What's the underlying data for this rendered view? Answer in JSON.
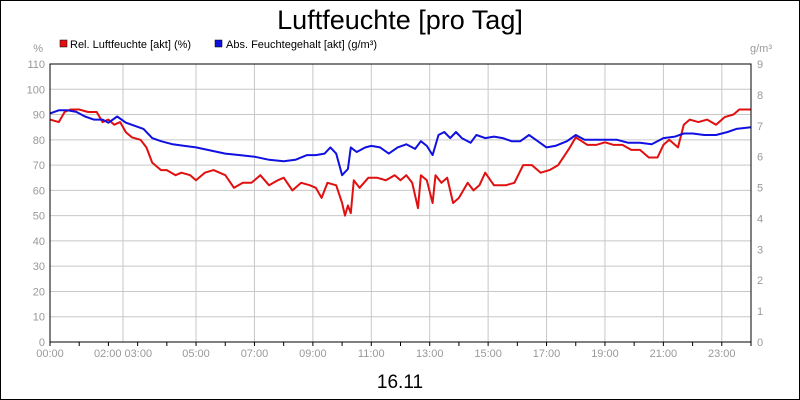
{
  "chart_data": {
    "type": "line",
    "title": "Luftfeuchte [pro Tag]",
    "date_label": "16.11",
    "y_left_unit": "%",
    "y_right_unit": "g/m³",
    "ylim_left": [
      0,
      110
    ],
    "ylim_right": [
      0,
      9
    ],
    "xlim": [
      0,
      24
    ],
    "y_left_ticks": [
      "0",
      "10",
      "20",
      "30",
      "40",
      "50",
      "60",
      "70",
      "80",
      "90",
      "100",
      "110"
    ],
    "y_right_ticks": [
      "0",
      "1",
      "2",
      "3",
      "4",
      "5",
      "6",
      "7",
      "8",
      "9"
    ],
    "x_ticks": [
      {
        "h": 0,
        "label": "00:00"
      },
      {
        "h": 2.5,
        "label": "02:00 03:00"
      },
      {
        "h": 5,
        "label": "05:00"
      },
      {
        "h": 7,
        "label": "07:00"
      },
      {
        "h": 9,
        "label": "09:00"
      },
      {
        "h": 11,
        "label": "11:00"
      },
      {
        "h": 13,
        "label": "13:00"
      },
      {
        "h": 15,
        "label": "15:00"
      },
      {
        "h": 17,
        "label": "17:00"
      },
      {
        "h": 19,
        "label": "19:00"
      },
      {
        "h": 21,
        "label": "21:00"
      },
      {
        "h": 23,
        "label": "23:00"
      }
    ],
    "grid": true,
    "legend_position": "top-left",
    "series": [
      {
        "name": "Rel. Luftfeuchte [akt] (%)",
        "color": "#e01010",
        "axis": "left",
        "points": [
          [
            0,
            88
          ],
          [
            0.3,
            87
          ],
          [
            0.5,
            91
          ],
          [
            0.7,
            92
          ],
          [
            1.0,
            92
          ],
          [
            1.3,
            91
          ],
          [
            1.6,
            91
          ],
          [
            1.8,
            87
          ],
          [
            2.0,
            88
          ],
          [
            2.2,
            86
          ],
          [
            2.4,
            87
          ],
          [
            2.6,
            83
          ],
          [
            2.8,
            81
          ],
          [
            3.1,
            80
          ],
          [
            3.3,
            77
          ],
          [
            3.5,
            71
          ],
          [
            3.8,
            68
          ],
          [
            4.0,
            68
          ],
          [
            4.3,
            66
          ],
          [
            4.5,
            67
          ],
          [
            4.8,
            66
          ],
          [
            5.0,
            64
          ],
          [
            5.3,
            67
          ],
          [
            5.6,
            68
          ],
          [
            6.0,
            66
          ],
          [
            6.3,
            61
          ],
          [
            6.6,
            63
          ],
          [
            6.9,
            63
          ],
          [
            7.2,
            66
          ],
          [
            7.5,
            62
          ],
          [
            7.8,
            64
          ],
          [
            8.0,
            65
          ],
          [
            8.3,
            60
          ],
          [
            8.6,
            63
          ],
          [
            8.9,
            62
          ],
          [
            9.1,
            61
          ],
          [
            9.3,
            57
          ],
          [
            9.5,
            63
          ],
          [
            9.8,
            62
          ],
          [
            10.0,
            55
          ],
          [
            10.1,
            50
          ],
          [
            10.2,
            54
          ],
          [
            10.3,
            51
          ],
          [
            10.4,
            64
          ],
          [
            10.6,
            61
          ],
          [
            10.9,
            65
          ],
          [
            11.2,
            65
          ],
          [
            11.5,
            64
          ],
          [
            11.8,
            66
          ],
          [
            12.0,
            64
          ],
          [
            12.2,
            66
          ],
          [
            12.4,
            63
          ],
          [
            12.6,
            53
          ],
          [
            12.7,
            66
          ],
          [
            12.9,
            64
          ],
          [
            13.1,
            55
          ],
          [
            13.2,
            66
          ],
          [
            13.4,
            63
          ],
          [
            13.6,
            65
          ],
          [
            13.8,
            55
          ],
          [
            14.0,
            57
          ],
          [
            14.3,
            63
          ],
          [
            14.5,
            60
          ],
          [
            14.7,
            62
          ],
          [
            14.9,
            67
          ],
          [
            15.2,
            62
          ],
          [
            15.6,
            62
          ],
          [
            15.9,
            63
          ],
          [
            16.2,
            70
          ],
          [
            16.5,
            70
          ],
          [
            16.8,
            67
          ],
          [
            17.1,
            68
          ],
          [
            17.4,
            70
          ],
          [
            17.8,
            77
          ],
          [
            18.0,
            81
          ],
          [
            18.4,
            78
          ],
          [
            18.7,
            78
          ],
          [
            19.0,
            79
          ],
          [
            19.3,
            78
          ],
          [
            19.6,
            78
          ],
          [
            19.9,
            76
          ],
          [
            20.2,
            76
          ],
          [
            20.5,
            73
          ],
          [
            20.8,
            73
          ],
          [
            21.0,
            78
          ],
          [
            21.2,
            80
          ],
          [
            21.5,
            77
          ],
          [
            21.7,
            86
          ],
          [
            21.9,
            88
          ],
          [
            22.2,
            87
          ],
          [
            22.5,
            88
          ],
          [
            22.8,
            86
          ],
          [
            23.1,
            89
          ],
          [
            23.4,
            90
          ],
          [
            23.6,
            92
          ],
          [
            24.0,
            92
          ]
        ]
      },
      {
        "name": "Abs. Feuchtegehalt [akt] (g/m³)",
        "color": "#1010e0",
        "axis": "right",
        "points": [
          [
            0,
            7.4
          ],
          [
            0.3,
            7.5
          ],
          [
            0.6,
            7.5
          ],
          [
            0.9,
            7.45
          ],
          [
            1.2,
            7.3
          ],
          [
            1.5,
            7.2
          ],
          [
            1.8,
            7.2
          ],
          [
            2.0,
            7.1
          ],
          [
            2.3,
            7.3
          ],
          [
            2.6,
            7.1
          ],
          [
            2.9,
            7.0
          ],
          [
            3.2,
            6.9
          ],
          [
            3.5,
            6.6
          ],
          [
            3.8,
            6.5
          ],
          [
            4.2,
            6.4
          ],
          [
            4.6,
            6.35
          ],
          [
            5.0,
            6.3
          ],
          [
            5.5,
            6.2
          ],
          [
            6.0,
            6.1
          ],
          [
            6.5,
            6.05
          ],
          [
            7.0,
            6.0
          ],
          [
            7.5,
            5.9
          ],
          [
            8.0,
            5.85
          ],
          [
            8.4,
            5.9
          ],
          [
            8.8,
            6.05
          ],
          [
            9.1,
            6.05
          ],
          [
            9.4,
            6.1
          ],
          [
            9.6,
            6.3
          ],
          [
            9.8,
            6.1
          ],
          [
            10.0,
            5.4
          ],
          [
            10.1,
            5.5
          ],
          [
            10.2,
            5.6
          ],
          [
            10.3,
            6.3
          ],
          [
            10.5,
            6.15
          ],
          [
            10.8,
            6.3
          ],
          [
            11.0,
            6.35
          ],
          [
            11.3,
            6.3
          ],
          [
            11.6,
            6.1
          ],
          [
            11.9,
            6.3
          ],
          [
            12.2,
            6.4
          ],
          [
            12.5,
            6.25
          ],
          [
            12.7,
            6.5
          ],
          [
            12.9,
            6.35
          ],
          [
            13.1,
            6.05
          ],
          [
            13.3,
            6.7
          ],
          [
            13.5,
            6.8
          ],
          [
            13.7,
            6.6
          ],
          [
            13.9,
            6.8
          ],
          [
            14.1,
            6.6
          ],
          [
            14.4,
            6.45
          ],
          [
            14.6,
            6.7
          ],
          [
            14.9,
            6.6
          ],
          [
            15.2,
            6.65
          ],
          [
            15.5,
            6.6
          ],
          [
            15.8,
            6.5
          ],
          [
            16.1,
            6.5
          ],
          [
            16.4,
            6.7
          ],
          [
            16.7,
            6.5
          ],
          [
            17.0,
            6.3
          ],
          [
            17.3,
            6.35
          ],
          [
            17.7,
            6.5
          ],
          [
            18.0,
            6.7
          ],
          [
            18.3,
            6.55
          ],
          [
            18.7,
            6.55
          ],
          [
            19.0,
            6.55
          ],
          [
            19.4,
            6.55
          ],
          [
            19.8,
            6.45
          ],
          [
            20.2,
            6.45
          ],
          [
            20.6,
            6.4
          ],
          [
            21.0,
            6.6
          ],
          [
            21.4,
            6.65
          ],
          [
            21.7,
            6.75
          ],
          [
            22.0,
            6.75
          ],
          [
            22.4,
            6.7
          ],
          [
            22.8,
            6.7
          ],
          [
            23.2,
            6.8
          ],
          [
            23.5,
            6.9
          ],
          [
            24.0,
            6.95
          ]
        ]
      }
    ]
  }
}
